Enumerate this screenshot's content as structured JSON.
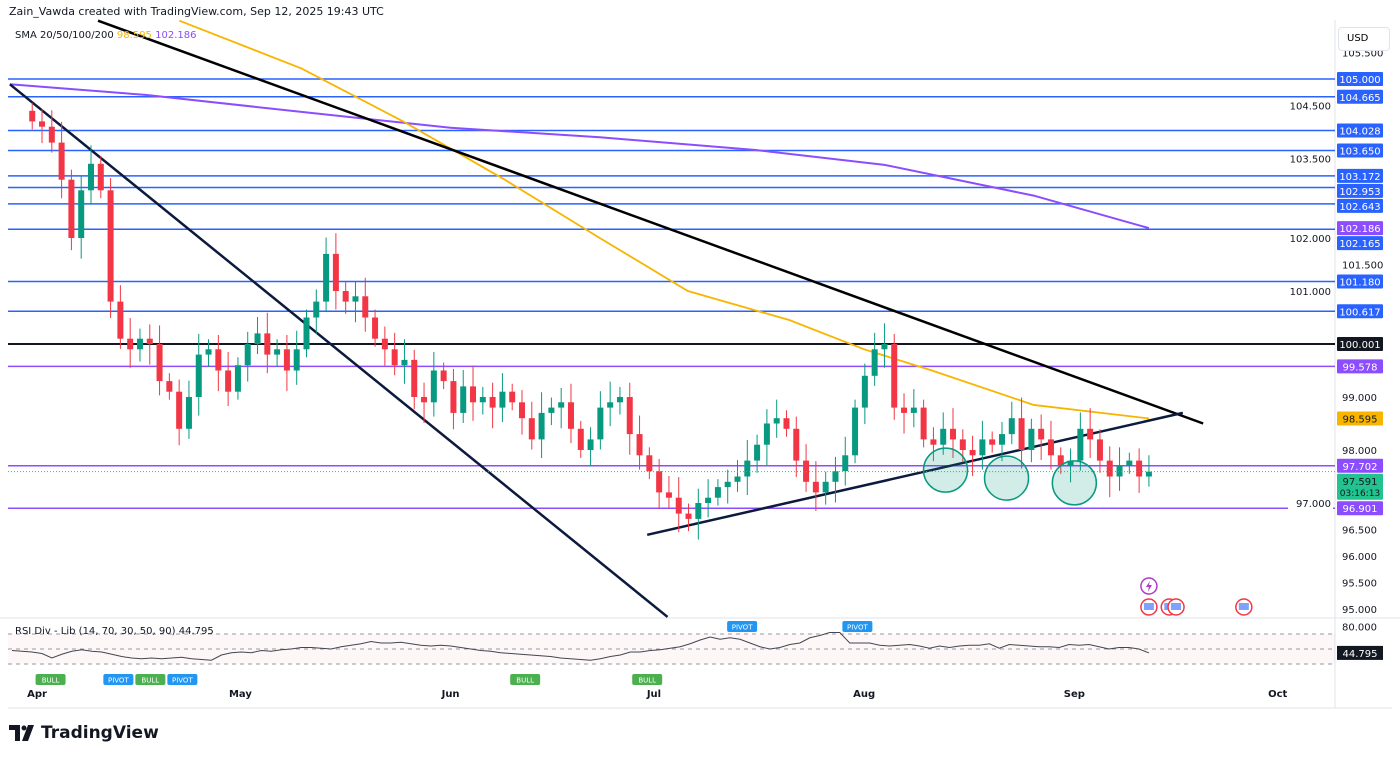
{
  "header": {
    "credit": "Zain_Vawda created with TradingView.com, Sep 12, 2025 19:43 UTC",
    "currency": "USD",
    "brand": "TradingView"
  },
  "legend": {
    "sma_label": "SMA 20/50/100/200",
    "sma_value_orange": "98.595",
    "sma_value_purple": "102.186"
  },
  "rsi_legend": {
    "label": "RSI Div - Lib (14, 70, 30, 50, 90)",
    "value": "44.795"
  },
  "chart_data": {
    "type": "candlestick",
    "colors": {
      "up": "#089981",
      "down": "#f23645",
      "level_blue": "#2962ff",
      "level_purple": "#8c4dff",
      "level_black": "#131722",
      "sma_orange": "#f7b500",
      "sma_purple": "#8c4dff",
      "circle": "#089981"
    },
    "x_ticks": [
      {
        "label": "Apr",
        "date": "2025-04-01"
      },
      {
        "label": "May",
        "date": "2025-05-01"
      },
      {
        "label": "Jun",
        "date": "2025-06-01"
      },
      {
        "label": "Jul",
        "date": "2025-07-01"
      },
      {
        "label": "Aug",
        "date": "2025-08-01"
      },
      {
        "label": "Sep",
        "date": "2025-09-01"
      },
      {
        "label": "Oct",
        "date": "2025-10-01"
      }
    ],
    "y_ticks": [
      "105.500",
      "104.500",
      "103.500",
      "102.000",
      "101.500",
      "101.000",
      "99.000",
      "98.000",
      "97.000",
      "96.500",
      "96.000",
      "95.500",
      "95.000"
    ],
    "ylim": [
      94.8,
      106.5
    ],
    "first_date": "2025-03-31",
    "last_date": "2025-09-12",
    "closes": [
      104.2,
      104.1,
      103.8,
      103.1,
      102.0,
      102.9,
      103.4,
      102.9,
      100.8,
      100.1,
      99.9,
      100.1,
      100.0,
      99.3,
      99.1,
      98.4,
      99.0,
      99.8,
      99.9,
      99.5,
      99.1,
      99.6,
      100.0,
      100.2,
      99.8,
      99.9,
      99.5,
      99.9,
      100.5,
      100.8,
      101.7,
      101.0,
      100.8,
      100.9,
      100.5,
      100.1,
      99.9,
      99.6,
      99.7,
      99.0,
      98.9,
      99.5,
      99.3,
      98.7,
      99.2,
      98.9,
      99.0,
      98.8,
      99.1,
      98.9,
      98.6,
      98.2,
      98.7,
      98.8,
      98.9,
      98.4,
      98.0,
      98.2,
      98.8,
      98.9,
      99.0,
      98.3,
      97.9,
      97.6,
      97.2,
      97.1,
      96.8,
      96.7,
      97.0,
      97.1,
      97.3,
      97.4,
      97.5,
      97.8,
      98.1,
      98.5,
      98.6,
      98.4,
      97.8,
      97.4,
      97.2,
      97.4,
      97.6,
      97.9,
      98.8,
      99.4,
      99.9,
      100.0,
      98.8,
      98.7,
      98.8,
      98.2,
      98.1,
      98.4,
      98.2,
      98.0,
      97.9,
      98.2,
      98.1,
      98.3,
      98.6,
      98.0,
      98.4,
      98.2,
      97.9,
      97.7,
      97.8,
      98.4,
      98.2,
      97.8,
      97.5,
      97.7,
      97.8,
      97.5,
      97.591
    ],
    "levels": [
      {
        "price": 105.0,
        "label": "105.000",
        "color": "#2962ff"
      },
      {
        "price": 104.665,
        "label": "104.665",
        "color": "#2962ff"
      },
      {
        "price": 104.028,
        "label": "104.028",
        "color": "#2962ff"
      },
      {
        "price": 103.65,
        "label": "103.650",
        "color": "#2962ff"
      },
      {
        "price": 103.172,
        "label": "103.172",
        "color": "#2962ff"
      },
      {
        "price": 102.953,
        "label": "102.953",
        "color": "#2962ff"
      },
      {
        "price": 102.643,
        "label": "102.643",
        "color": "#2962ff"
      },
      {
        "price": 102.165,
        "label": "102.165",
        "color": "#2962ff"
      },
      {
        "price": 101.18,
        "label": "101.180",
        "color": "#2962ff"
      },
      {
        "price": 100.617,
        "label": "100.617",
        "color": "#2962ff"
      },
      {
        "price": 100.001,
        "label": "100.001",
        "color": "#131722"
      },
      {
        "price": 99.578,
        "label": "99.578",
        "color": "#8c4dff"
      },
      {
        "price": 97.702,
        "label": "97.702",
        "color": "#8c4dff"
      },
      {
        "price": 96.901,
        "label": "96.901",
        "color": "#8c4dff"
      }
    ],
    "price_tags": [
      {
        "price": 102.186,
        "label": "102.186",
        "color": "#8c4dff"
      },
      {
        "price": 98.595,
        "label": "98.595",
        "color": "#f7b500",
        "text": "#131722"
      }
    ],
    "last_price": {
      "price": 97.591,
      "label": "97.591",
      "countdown": "03:16:13",
      "color": "#22c38e"
    },
    "trendlines": [
      {
        "from": [
          "2025-04-10",
          106.1
        ],
        "to": [
          "2025-09-20",
          98.5
        ],
        "color": "#000000"
      },
      {
        "from": [
          "2025-03-28",
          104.9
        ],
        "to": [
          "2025-07-03",
          94.85
        ],
        "color": "#0c1a3d"
      },
      {
        "from": [
          "2025-06-30",
          96.4
        ],
        "to": [
          "2025-09-17",
          98.7
        ],
        "color": "#0c1a3d"
      }
    ],
    "sma_orange": [
      [
        "2025-04-22",
        106.1
      ],
      [
        "2025-05-10",
        105.2
      ],
      [
        "2025-05-25",
        104.2
      ],
      [
        "2025-06-09",
        103.1
      ],
      [
        "2025-06-23",
        102.0
      ],
      [
        "2025-07-06",
        101.0
      ],
      [
        "2025-07-21",
        100.45
      ],
      [
        "2025-08-01",
        99.9
      ],
      [
        "2025-08-11",
        99.5
      ],
      [
        "2025-08-26",
        98.85
      ],
      [
        "2025-09-12",
        98.595
      ]
    ],
    "sma_purple": [
      [
        "2025-03-28",
        104.9
      ],
      [
        "2025-04-17",
        104.7
      ],
      [
        "2025-05-10",
        104.38
      ],
      [
        "2025-06-01",
        104.08
      ],
      [
        "2025-06-23",
        103.9
      ],
      [
        "2025-07-16",
        103.66
      ],
      [
        "2025-08-04",
        103.38
      ],
      [
        "2025-08-26",
        102.8
      ],
      [
        "2025-09-12",
        102.186
      ]
    ],
    "circles": [
      [
        "2025-08-13",
        97.62
      ],
      [
        "2025-08-22",
        97.47
      ],
      [
        "2025-09-01",
        97.38
      ]
    ],
    "rsi": {
      "y_ticks": [
        "80.000"
      ],
      "bands": [
        70,
        50,
        30
      ],
      "ylim": [
        10,
        90
      ],
      "values": [
        48,
        47,
        46,
        44,
        38,
        43,
        47,
        49,
        47,
        46,
        43,
        40,
        38,
        37,
        38,
        37,
        38,
        39,
        37,
        36,
        35,
        42,
        45,
        46,
        45,
        48,
        47,
        49,
        50,
        52,
        52,
        51,
        50,
        53,
        55,
        57,
        60,
        58,
        58,
        59,
        57,
        55,
        54,
        55,
        54,
        52,
        50,
        48,
        47,
        45,
        44,
        43,
        42,
        41,
        40,
        38,
        37,
        36,
        35,
        37,
        40,
        42,
        46,
        46,
        48,
        49,
        51,
        53,
        57,
        62,
        66,
        63,
        65,
        63,
        58,
        53,
        50,
        52,
        56,
        58,
        65,
        68,
        72,
        72,
        58,
        58,
        58,
        55,
        54,
        55,
        56,
        54,
        51,
        54,
        52,
        54,
        55,
        55,
        57,
        51,
        56,
        55,
        54,
        53,
        53,
        52,
        56,
        55,
        56,
        53,
        50,
        52,
        52,
        50,
        44.795
      ],
      "signals": [
        {
          "label": "BULL",
          "date": "2025-04-03",
          "pos": "below"
        },
        {
          "label": "PIVOT",
          "date": "2025-04-13",
          "pos": "below"
        },
        {
          "label": "BULL",
          "date": "2025-04-16",
          "pos": "below"
        },
        {
          "label": "PIVOT",
          "date": "2025-04-19",
          "pos": "below"
        },
        {
          "label": "BULL",
          "date": "2025-06-12",
          "pos": "below"
        },
        {
          "label": "BULL",
          "date": "2025-06-30",
          "pos": "below"
        },
        {
          "label": "PIVOT",
          "date": "2025-07-14",
          "pos": "above"
        },
        {
          "label": "PIVOT",
          "date": "2025-07-31",
          "pos": "above"
        }
      ]
    }
  },
  "events": [
    {
      "icon": "lightning-icon",
      "date": "2025-09-12"
    },
    {
      "icon": "us-flag-icon",
      "date": "2025-09-12"
    },
    {
      "icon": "us-flag-icon",
      "date": "2025-09-15"
    },
    {
      "icon": "us-flag-icon",
      "date": "2025-09-16"
    },
    {
      "icon": "us-flag-icon",
      "date": "2025-09-26"
    }
  ]
}
